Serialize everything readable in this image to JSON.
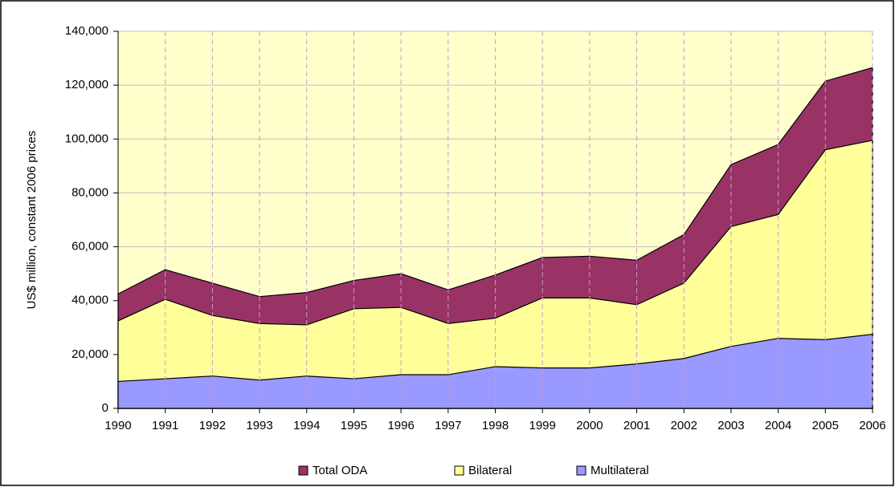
{
  "chart_data": {
    "type": "area",
    "stacked": false,
    "y_label": "US$ million, constant 2006 prices",
    "categories": [
      "1990",
      "1991",
      "1992",
      "1993",
      "1994",
      "1995",
      "1996",
      "1997",
      "1998",
      "1999",
      "2000",
      "2001",
      "2002",
      "2003",
      "2004",
      "2005",
      "2006"
    ],
    "series": [
      {
        "name": "Total ODA",
        "color": "#993366",
        "values": [
          42500,
          51500,
          46500,
          41500,
          43000,
          47500,
          50000,
          44000,
          49500,
          56000,
          56500,
          55000,
          64500,
          90500,
          98000,
          121500,
          126500
        ]
      },
      {
        "name": "Bilateral",
        "color": "#FFFF99",
        "values": [
          32500,
          40500,
          34500,
          31500,
          31000,
          37000,
          37500,
          31500,
          33500,
          41000,
          41000,
          38500,
          46500,
          67500,
          72000,
          96000,
          99500
        ]
      },
      {
        "name": "Multilateral",
        "color": "#9999FF",
        "values": [
          10000,
          11000,
          12000,
          10500,
          12000,
          11000,
          12500,
          12500,
          15500,
          15000,
          15000,
          16500,
          18500,
          23000,
          26000,
          25500,
          27500
        ]
      }
    ],
    "ylim": [
      0,
      140000
    ],
    "yticks": [
      0,
      {
        "value": 20000,
        "label": "20,000"
      },
      {
        "value": 40000,
        "label": "40,000"
      },
      {
        "value": 60000,
        "label": "60,000"
      },
      {
        "value": 80000,
        "label": "80,000"
      },
      {
        "value": 100000,
        "label": "100,000"
      },
      {
        "value": 120000,
        "label": "120,000"
      },
      {
        "value": 140000,
        "label": "140,000"
      }
    ],
    "grid": true,
    "plot_background": "#FFFFCC",
    "legend": "bottom"
  }
}
